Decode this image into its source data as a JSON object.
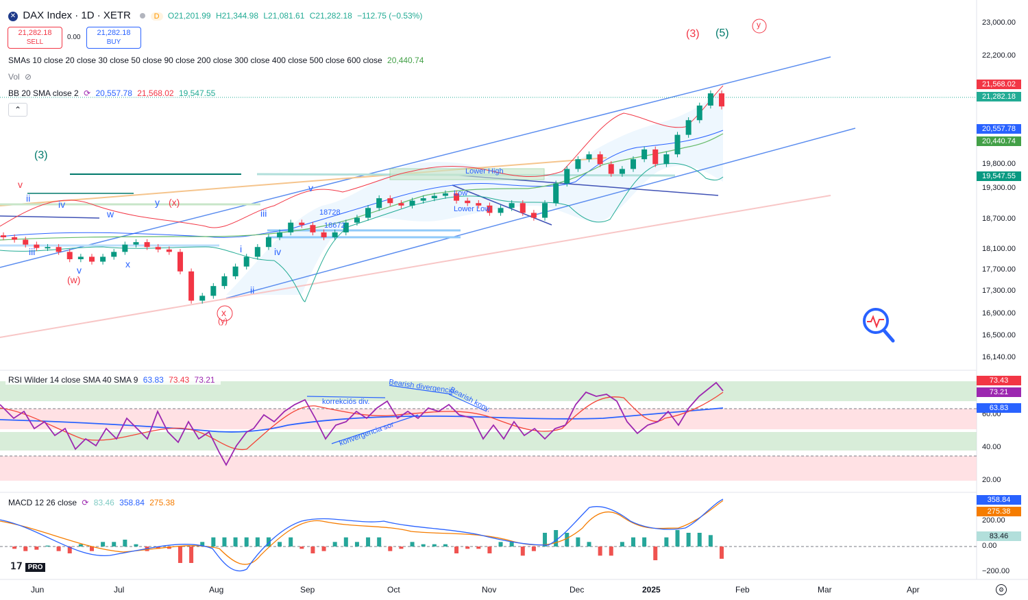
{
  "header": {
    "symbol": "DAX Index · 1D · XETR",
    "status_badge": "D",
    "open": "O21,201.99",
    "high": "H21,344.98",
    "low": "L21,081.61",
    "close": "C21,282.18",
    "change": "−112.75 (−0.53%)",
    "sell_price": "21,282.18",
    "sell_label": "SELL",
    "spread": "0.00",
    "buy_price": "21,282.18",
    "buy_label": "BUY"
  },
  "indicators": {
    "sma_label": "SMAs 10 close 20 close 30 close 50 close 90 close 200 close 300 close 400 close 500 close 600 close",
    "sma_value": "20,440.74",
    "vol_label": "Vol",
    "bb_label": "BB 20 SMA close 2",
    "bb_basis": "20,557.78",
    "bb_upper": "21,568.02",
    "bb_lower": "19,547.55",
    "rsi_label": "RSI Wilder 14 close SMA 40 SMA 9",
    "rsi_v1": "63.83",
    "rsi_v2": "73.43",
    "rsi_v3": "73.21",
    "macd_label": "MACD 12 26 close",
    "macd_v1": "83.46",
    "macd_v2": "358.84",
    "macd_v3": "275.38"
  },
  "price_axis": {
    "ticks": [
      "23,000.00",
      "22,200.00",
      "19,800.00",
      "19,300.00",
      "18,700.00",
      "18,100.00",
      "17,700.00",
      "17,300.00",
      "16,900.00",
      "16,500.00",
      "16,140.00"
    ],
    "tags": {
      "bb_upper": "21,568.02",
      "last": "21,282.18",
      "bb_basis": "20,557.78",
      "sma": "20,440.74",
      "bb_lower": "19,547.55"
    }
  },
  "rsi_axis": {
    "ticks": [
      "60.00",
      "40.00",
      "20.00"
    ],
    "tags": {
      "a": "73.43",
      "b": "73.21",
      "c": "63.83"
    }
  },
  "macd_axis": {
    "ticks": [
      "200.00",
      "0.00",
      "−200.00"
    ],
    "tags": {
      "a": "358.84",
      "b": "275.38",
      "c": "83.46"
    }
  },
  "time_axis": [
    "Jun",
    "Jul",
    "Aug",
    "Sep",
    "Oct",
    "Nov",
    "Dec",
    "2025",
    "Feb",
    "Mar",
    "Apr"
  ],
  "waves": {
    "w3_green": "(3)",
    "w3_red": "(3)",
    "w5": "(5)",
    "wy": "y",
    "v_red": "v",
    "ii": "ii",
    "iv": "iv",
    "w": "w",
    "y": "y",
    "x_red": "(x)",
    "iii": "iii",
    "v_blue": "v",
    "ww": "(w)",
    "x": "x",
    "i": "i",
    "iv2": "iv",
    "ii2": "ii",
    "iii2": "iii",
    "v2": "v",
    "xcirc": "x",
    "yparen": "(y)"
  },
  "annotations": {
    "n18728": "18728",
    "n18672": "18672",
    "lower_high": "Lower High",
    "low": "Low",
    "lower_low": "Lower Low",
    "korrekcios": "korrekciós div.",
    "bearish_div": "Bearish divergencia",
    "bearish_konv": "Bearish konv.",
    "konvergencia": "konvergencia sor"
  },
  "logo": "PRO",
  "colors": {
    "up": "#089981",
    "down": "#f23645",
    "blue": "#2962ff",
    "purple": "#9c27b0"
  },
  "chart_data": {
    "type": "candlestick",
    "title": "DAX Index · 1D · XETR",
    "ylim": [
      16140,
      23000
    ],
    "x": [
      "Jun",
      "Jul",
      "Aug",
      "Sep",
      "Oct",
      "Nov",
      "Dec",
      "2025",
      "Feb",
      "Mar",
      "Apr"
    ],
    "close_series": [
      18600,
      18550,
      18450,
      18380,
      18400,
      18300,
      18150,
      18200,
      18100,
      18200,
      18300,
      18450,
      18500,
      18400,
      18350,
      18300,
      17900,
      17300,
      17400,
      17600,
      17800,
      18000,
      18200,
      18400,
      18600,
      18700,
      18900,
      18850,
      18700,
      18600,
      18700,
      18900,
      19000,
      19200,
      19400,
      19300,
      19250,
      19350,
      19400,
      19450,
      19500,
      19350,
      19300,
      19250,
      19100,
      19200,
      19300,
      19100,
      19000,
      19300,
      19700,
      20000,
      20200,
      20300,
      20100,
      19900,
      20000,
      20200,
      20400,
      20100,
      20300,
      20700,
      21000,
      21300,
      21550,
      21282
    ],
    "ma_values": {
      "bb_upper": 21568.02,
      "bb_basis": 20557.78,
      "bb_lower": 19547.55,
      "sma": 20440.74
    }
  }
}
